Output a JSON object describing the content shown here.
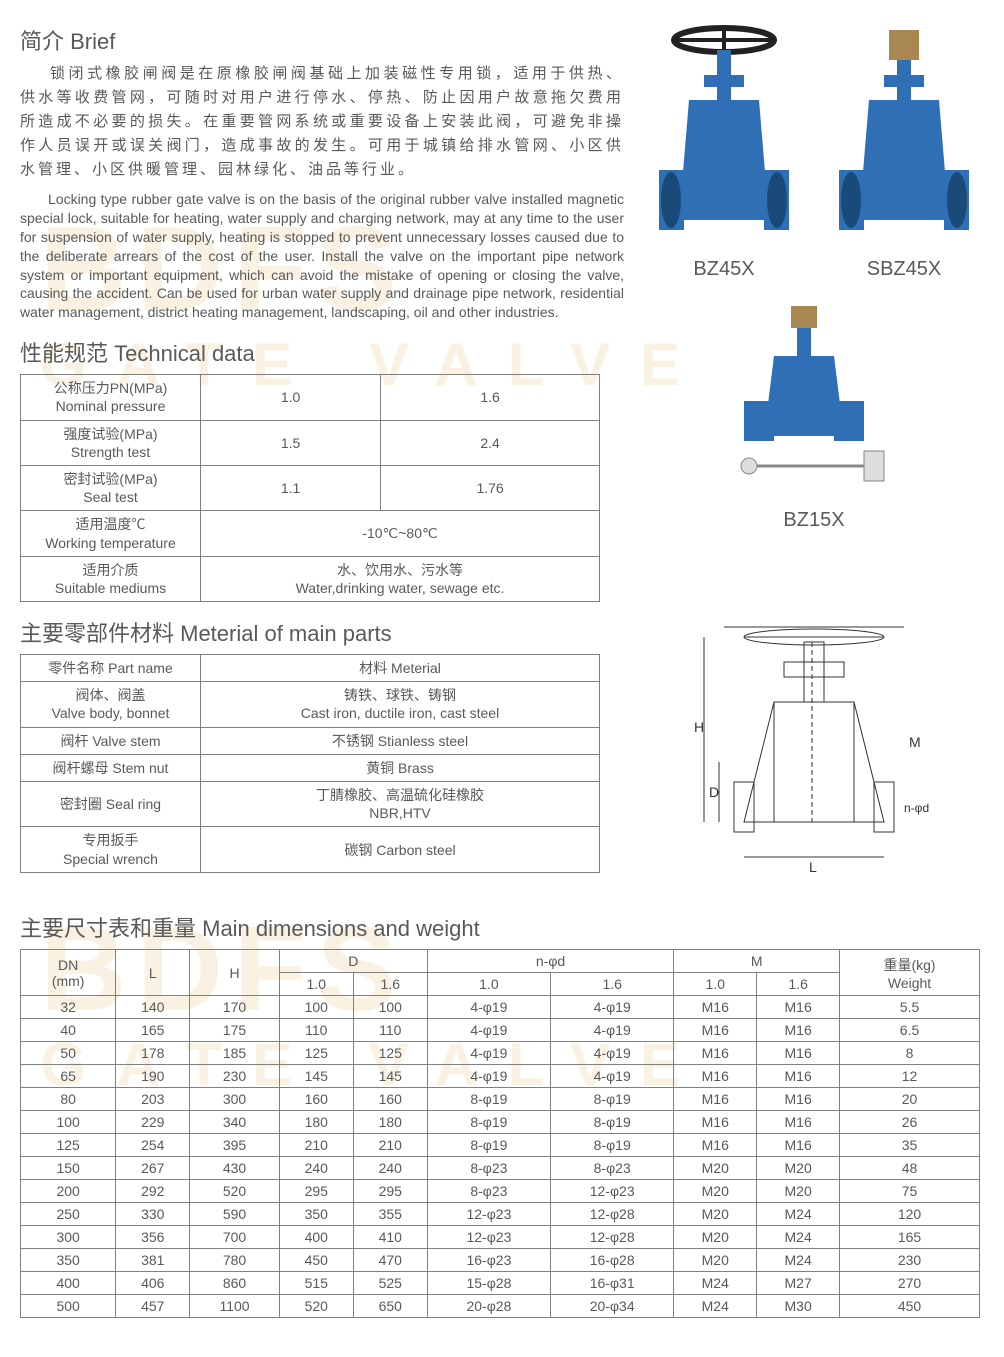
{
  "brief": {
    "heading": "简介 Brief",
    "cn": "锁闭式橡胶闸阀是在原橡胶闸阀基础上加装磁性专用锁，适用于供热、供水等收费管网，可随时对用户进行停水、停热、防止因用户故意拖欠费用所造成不必要的损失。在重要管网系统或重要设备上安装此阀，可避免非操作人员误开或误关阀门，造成事故的发生。可用于城镇给排水管网、小区供水管理、小区供暖管理、园林绿化、油品等行业。",
    "en": "Locking type rubber gate valve is on the basis of the original rubber valve installed magnetic special lock, suitable for heating, water supply and charging network, may at any time to the user for suspension of water supply, heating is stopped to prevent unnecessary losses caused due to the deliberate arrears of the cost of the user. Install the valve on the important pipe network system or important equipment, which can avoid the mistake of opening or closing the valve, causing the accident. Can be used for urban water supply and drainage pipe network, residential water management, district heating management, landscaping, oil and other industries."
  },
  "products": {
    "p1": "BZ45X",
    "p2": "SBZ45X",
    "p3": "BZ15X"
  },
  "tech": {
    "heading": "性能规范 Technical data",
    "rows": [
      {
        "label": "公称压力PN(MPa)\nNominal pressure",
        "v1": "1.0",
        "v2": "1.6"
      },
      {
        "label": "强度试验(MPa)\nStrength test",
        "v1": "1.5",
        "v2": "2.4"
      },
      {
        "label": "密封试验(MPa)\nSeal test",
        "v1": "1.1",
        "v2": "1.76"
      },
      {
        "label": "适用温度℃\nWorking temperature",
        "span": "-10℃~80℃"
      },
      {
        "label": "适用介质\nSuitable mediums",
        "span": "水、饮用水、污水等\nWater,drinking water, sewage etc."
      }
    ]
  },
  "materials": {
    "heading": "主要零部件材料 Meterial of main parts",
    "header": {
      "c1": "零件名称 Part name",
      "c2": "材料 Meterial"
    },
    "rows": [
      {
        "c1": "阀体、阀盖\nValve body, bonnet",
        "c2": "铸铁、球铁、铸钢\nCast iron, ductile iron, cast steel"
      },
      {
        "c1": "阀杆 Valve stem",
        "c2": "不锈钢 Stianless steel"
      },
      {
        "c1": "阀杆螺母 Stem nut",
        "c2": "黄铜 Brass"
      },
      {
        "c1": "密封圈 Seal ring",
        "c2": "丁腈橡胶、高温硫化硅橡胶\nNBR,HTV"
      },
      {
        "c1": "专用扳手\nSpecial wrench",
        "c2": "碳钢 Carbon steel"
      }
    ]
  },
  "dims": {
    "heading": "主要尺寸表和重量 Main dimensions and weight",
    "headers": {
      "dn": "DN\n(mm)",
      "l": "L",
      "h": "H",
      "d": "D",
      "nphi": "n-φd",
      "m": "M",
      "weight": "重量(kg)\nWeight",
      "s10": "1.0",
      "s16": "1.6"
    },
    "rows": [
      [
        "32",
        "140",
        "170",
        "100",
        "100",
        "4-φ19",
        "4-φ19",
        "M16",
        "M16",
        "5.5"
      ],
      [
        "40",
        "165",
        "175",
        "110",
        "110",
        "4-φ19",
        "4-φ19",
        "M16",
        "M16",
        "6.5"
      ],
      [
        "50",
        "178",
        "185",
        "125",
        "125",
        "4-φ19",
        "4-φ19",
        "M16",
        "M16",
        "8"
      ],
      [
        "65",
        "190",
        "230",
        "145",
        "145",
        "4-φ19",
        "4-φ19",
        "M16",
        "M16",
        "12"
      ],
      [
        "80",
        "203",
        "300",
        "160",
        "160",
        "8-φ19",
        "8-φ19",
        "M16",
        "M16",
        "20"
      ],
      [
        "100",
        "229",
        "340",
        "180",
        "180",
        "8-φ19",
        "8-φ19",
        "M16",
        "M16",
        "26"
      ],
      [
        "125",
        "254",
        "395",
        "210",
        "210",
        "8-φ19",
        "8-φ19",
        "M16",
        "M16",
        "35"
      ],
      [
        "150",
        "267",
        "430",
        "240",
        "240",
        "8-φ23",
        "8-φ23",
        "M20",
        "M20",
        "48"
      ],
      [
        "200",
        "292",
        "520",
        "295",
        "295",
        "8-φ23",
        "12-φ23",
        "M20",
        "M20",
        "75"
      ],
      [
        "250",
        "330",
        "590",
        "350",
        "355",
        "12-φ23",
        "12-φ28",
        "M20",
        "M24",
        "120"
      ],
      [
        "300",
        "356",
        "700",
        "400",
        "410",
        "12-φ23",
        "12-φ28",
        "M20",
        "M24",
        "165"
      ],
      [
        "350",
        "381",
        "780",
        "450",
        "470",
        "16-φ23",
        "16-φ28",
        "M20",
        "M24",
        "230"
      ],
      [
        "400",
        "406",
        "860",
        "515",
        "525",
        "15-φ28",
        "16-φ31",
        "M24",
        "M27",
        "270"
      ],
      [
        "500",
        "457",
        "1100",
        "520",
        "650",
        "20-φ28",
        "20-φ34",
        "M24",
        "M30",
        "450"
      ]
    ]
  },
  "colors": {
    "valve_blue": "#2e6fb5",
    "text": "#595959",
    "border": "#808080",
    "watermark": "rgba(230,200,140,0.25)"
  }
}
